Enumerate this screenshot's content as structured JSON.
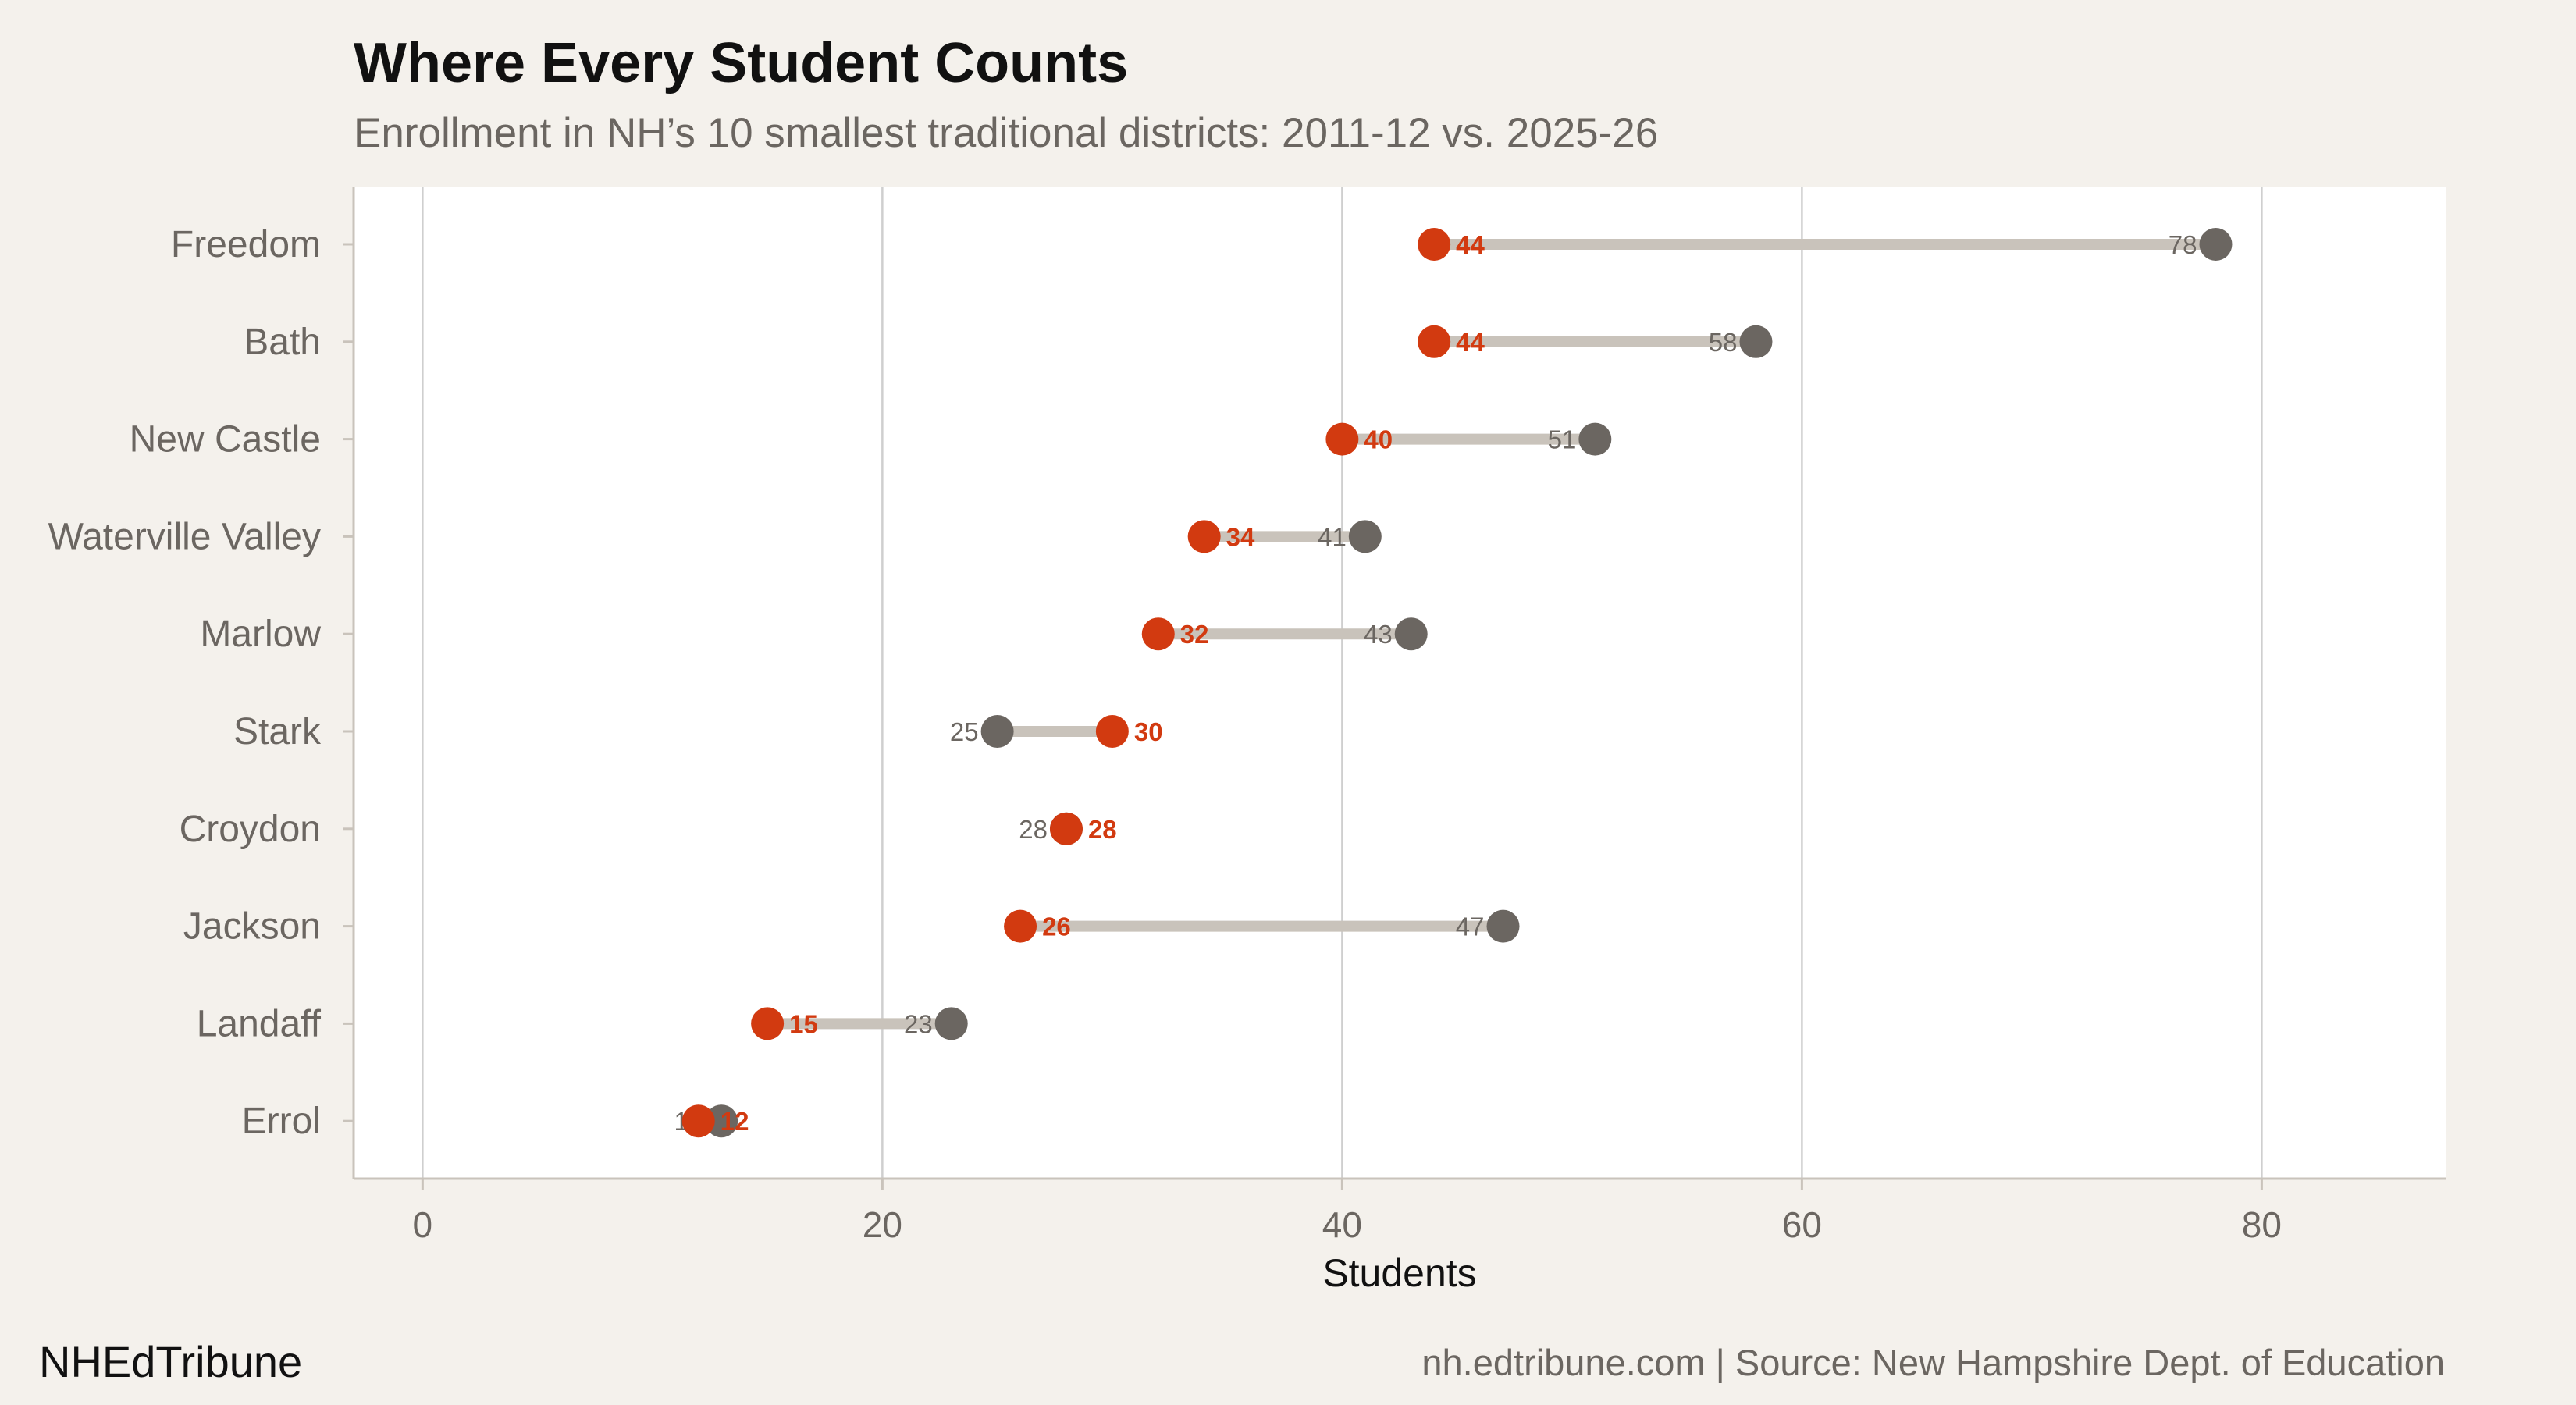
{
  "chart_data": {
    "type": "dumbbell",
    "title": "Where Every Student Counts",
    "subtitle": "Enrollment in NH’s 10 smallest traditional districts: 2011-12 vs. 2025-26",
    "xlabel": "Students",
    "ylabel": "",
    "xlim": [
      -3,
      88
    ],
    "xticks": [
      0,
      20,
      40,
      60,
      80
    ],
    "grid": "vertical",
    "series": [
      {
        "name": "2011-12",
        "color": "#6b6661"
      },
      {
        "name": "2025-26",
        "color": "#d23a10"
      }
    ],
    "categories": [
      "Freedom",
      "Bath",
      "New Castle",
      "Waterville Valley",
      "Marlow",
      "Stark",
      "Croydon",
      "Jackson",
      "Landaff",
      "Errol"
    ],
    "values_2011_12": [
      78,
      58,
      51,
      41,
      43,
      25,
      28,
      47,
      23,
      13
    ],
    "values_2025_26": [
      44,
      44,
      40,
      34,
      32,
      30,
      28,
      26,
      15,
      12
    ]
  },
  "colors": {
    "background": "#f4f1ec",
    "panel": "#ffffff",
    "connector": "#c9c3bb",
    "grid": "#cfcfcf",
    "axis": "#c9c3bb"
  },
  "footer": {
    "brand": "NHEdTribune",
    "source": "nh.edtribune.com | Source: New Hampshire Dept. of Education"
  }
}
